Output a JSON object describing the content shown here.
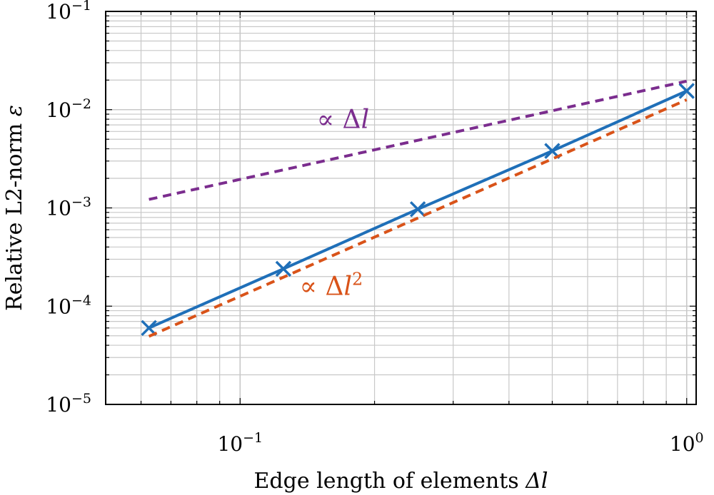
{
  "chart_data": {
    "type": "line",
    "x_scale": "log",
    "y_scale": "log",
    "xlim": [
      0.05,
      1.05
    ],
    "ylim": [
      1e-05,
      0.1
    ],
    "grid": true,
    "xlabel_parts": {
      "text": "Edge length of elements ",
      "symbol": "Δl"
    },
    "ylabel_parts": {
      "text": "Relative L2-norm ",
      "symbol": "ε"
    },
    "x_ticks": [
      {
        "value": 0.1,
        "base": "10",
        "exp": "−1"
      },
      {
        "value": 1,
        "base": "10",
        "exp": "0"
      }
    ],
    "y_ticks": [
      {
        "value": 0.1,
        "base": "10",
        "exp": "−1"
      },
      {
        "value": 0.01,
        "base": "10",
        "exp": "−2"
      },
      {
        "value": 0.001,
        "base": "10",
        "exp": "−3"
      },
      {
        "value": 0.0001,
        "base": "10",
        "exp": "−4"
      },
      {
        "value": 1e-05,
        "base": "10",
        "exp": "−5"
      }
    ],
    "series": [
      {
        "color": "#1f6fb8",
        "style": "solid",
        "marker": "x",
        "x": [
          0.0625,
          0.125,
          0.25,
          0.5,
          1.0
        ],
        "y": [
          6e-05,
          0.00024,
          0.00097,
          0.0038,
          0.0155
        ]
      },
      {
        "color": "#7b2d8e",
        "style": "dashed",
        "marker": "none",
        "x": [
          0.0625,
          1.0
        ],
        "y": [
          0.00122,
          0.0195
        ]
      },
      {
        "color": "#d95319",
        "style": "dashed",
        "marker": "none",
        "x": [
          0.0625,
          1.0
        ],
        "y": [
          4.93e-05,
          0.0126
        ]
      }
    ],
    "annotations": [
      {
        "series_index": 1,
        "prefix": "∝ Δ",
        "var": "l",
        "sup": "",
        "x": 0.17,
        "y": 0.0065
      },
      {
        "series_index": 2,
        "prefix": "∝ Δ",
        "var": "l",
        "sup": "2",
        "x": 0.16,
        "y": 0.00013
      }
    ]
  }
}
